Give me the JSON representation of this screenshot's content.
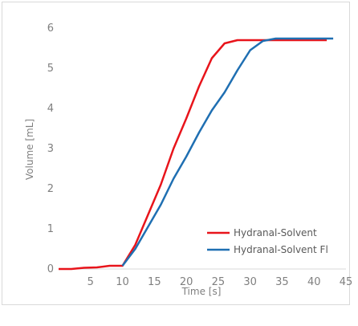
{
  "chart_data": {
    "type": "line",
    "title": "",
    "xlabel": "Time [s]",
    "ylabel": "Volume [mL]",
    "xlim": [
      0,
      45
    ],
    "ylim": [
      0,
      6
    ],
    "x_ticks": [
      5,
      10,
      15,
      20,
      25,
      30,
      35,
      40,
      45
    ],
    "y_ticks": [
      0,
      1,
      2,
      3,
      4,
      5,
      6
    ],
    "grid": false,
    "legend_position": "bottom-right",
    "series": [
      {
        "name": "Hydranal-Solvent",
        "color": "#e8141b",
        "x": [
          0,
          2,
          4,
          6,
          8,
          10,
          12,
          14,
          16,
          18,
          20,
          22,
          24,
          26,
          28,
          30,
          32,
          34,
          36,
          38,
          40,
          42
        ],
        "y": [
          0.0,
          0.0,
          0.03,
          0.04,
          0.08,
          0.08,
          0.6,
          1.35,
          2.1,
          3.0,
          3.75,
          4.55,
          5.25,
          5.62,
          5.7,
          5.7,
          5.7,
          5.7,
          5.7,
          5.7,
          5.7,
          5.7
        ]
      },
      {
        "name": "Hydranal-Solvent Fl",
        "color": "#1f6fb2",
        "x": [
          10,
          12,
          14,
          16,
          18,
          20,
          22,
          24,
          26,
          28,
          30,
          32,
          34,
          36,
          38,
          40,
          42,
          43
        ],
        "y": [
          0.08,
          0.5,
          1.05,
          1.6,
          2.25,
          2.8,
          3.4,
          3.95,
          4.4,
          4.95,
          5.45,
          5.68,
          5.74,
          5.74,
          5.74,
          5.74,
          5.74,
          5.74
        ]
      }
    ]
  }
}
